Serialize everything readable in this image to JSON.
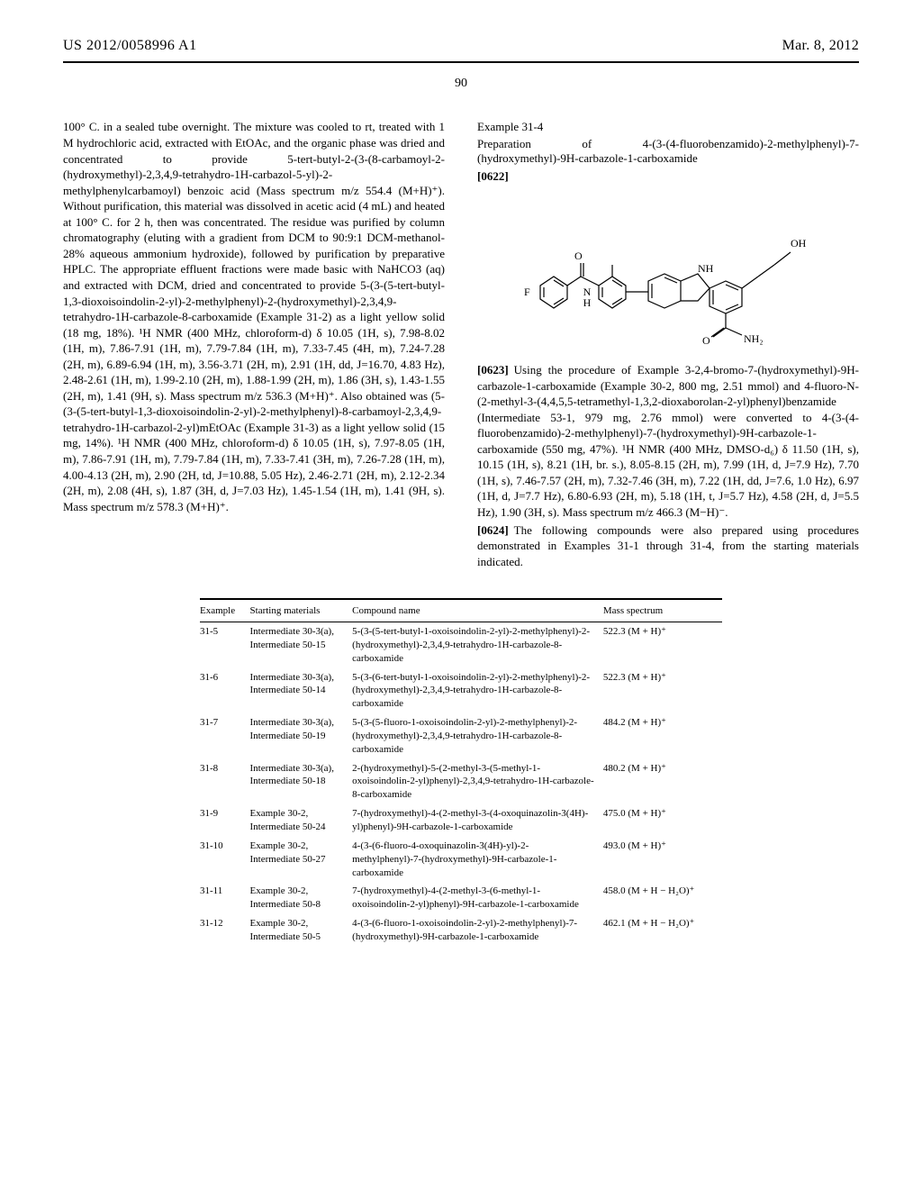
{
  "header": {
    "pubno": "US 2012/0058996 A1",
    "date": "Mar. 8, 2012"
  },
  "page_number": "90",
  "left_column": {
    "body": "100° C. in a sealed tube overnight. The mixture was cooled to rt, treated with 1 M hydrochloric acid, extracted with EtOAc, and the organic phase was dried and concentrated to provide 5-tert-butyl-2-(3-(8-carbamoyl-2-(hydroxymethyl)-2,3,4,9-tetrahydro-1H-carbazol-5-yl)-2-methylphenylcarbamoyl) benzoic acid (Mass spectrum m/z 554.4 (M+H)⁺). Without purification, this material was dissolved in acetic acid (4 mL) and heated at 100° C. for 2 h, then was concentrated. The residue was purified by column chromatography (eluting with a gradient from DCM to 90:9:1 DCM-methanol-28% aqueous ammonium hydroxide), followed by purification by preparative HPLC. The appropriate effluent fractions were made basic with NaHCO3 (aq) and extracted with DCM, dried and concentrated to provide 5-(3-(5-tert-butyl-1,3-dioxoisoindolin-2-yl)-2-methylphenyl)-2-(hydroxymethyl)-2,3,4,9-tetrahydro-1H-carbazole-8-carboxamide (Example 31-2) as a light yellow solid (18 mg, 18%). ¹H NMR (400 MHz, chloroform-d) δ 10.05 (1H, s), 7.98-8.02 (1H, m), 7.86-7.91 (1H, m), 7.79-7.84 (1H, m), 7.33-7.45 (4H, m), 7.24-7.28 (2H, m), 6.89-6.94 (1H, m), 3.56-3.71 (2H, m), 2.91 (1H, dd, J=16.70, 4.83 Hz), 2.48-2.61 (1H, m), 1.99-2.10 (2H, m), 1.88-1.99 (2H, m), 1.86 (3H, s), 1.43-1.55 (2H, m), 1.41 (9H, s). Mass spectrum m/z 536.3 (M+H)⁺. Also obtained was (5-(3-(5-tert-butyl-1,3-dioxoisoindolin-2-yl)-2-methylphenyl)-8-carbamoyl-2,3,4,9-tetrahydro-1H-carbazol-2-yl)mEtOAc (Example 31-3) as a light yellow solid (15 mg, 14%). ¹H NMR (400 MHz, chloroform-d) δ 10.05 (1H, s), 7.97-8.05 (1H, m), 7.86-7.91 (1H, m), 7.79-7.84 (1H, m), 7.33-7.41 (3H, m), 7.26-7.28 (1H, m), 4.00-4.13 (2H, m), 2.90 (2H, td, J=10.88, 5.05 Hz), 2.46-2.71 (2H, m), 2.12-2.34 (2H, m), 2.08 (4H, s), 1.87 (3H, d, J=7.03 Hz), 1.45-1.54 (1H, m), 1.41 (9H, s). Mass spectrum m/z 578.3 (M+H)⁺."
  },
  "right_column": {
    "example_label": "Example 31-4",
    "example_title": "Preparation of 4-(3-(4-fluorobenzamido)-2-methylphenyl)-7-(hydroxymethyl)-9H-carbazole-1-carboxamide",
    "para_0622": "[0622]",
    "para_0623_num": "[0623]",
    "para_0623": "Using the procedure of Example 3-2,4-bromo-7-(hydroxymethyl)-9H-carbazole-1-carboxamide (Example 30-2, 800 mg, 2.51 mmol) and 4-fluoro-N-(2-methyl-3-(4,4,5,5-tetramethyl-1,3,2-dioxaborolan-2-yl)phenyl)benzamide (Intermediate 53-1, 979 mg, 2.76 mmol) were converted to 4-(3-(4-fluorobenzamido)-2-methylphenyl)-7-(hydroxymethyl)-9H-carbazole-1-carboxamide (550 mg, 47%). ¹H NMR (400 MHz, DMSO-d₆) δ 11.50 (1H, s), 10.15 (1H, s), 8.21 (1H, br. s.), 8.05-8.15 (2H, m), 7.99 (1H, d, J=7.9 Hz), 7.70 (1H, s), 7.46-7.57 (2H, m), 7.32-7.46 (3H, m), 7.22 (1H, dd, J=7.6, 1.0 Hz), 6.97 (1H, d, J=7.7 Hz), 6.80-6.93 (2H, m), 5.18 (1H, t, J=5.7 Hz), 4.58 (2H, d, J=5.5 Hz), 1.90 (3H, s). Mass spectrum m/z 466.3 (M−H)⁻.",
    "para_0624_num": "[0624]",
    "para_0624": "The following compounds were also prepared using procedures demonstrated in Examples 31-1 through 31-4, from the starting materials indicated."
  },
  "structure": {
    "labels": {
      "OH": "OH",
      "O1": "O",
      "O2": "O",
      "NH_top": "NH",
      "NH2": "NH₂",
      "N": "N",
      "H": "H",
      "F": "F"
    }
  },
  "table": {
    "headers": {
      "example": "Example",
      "starting": "Starting materials",
      "name": "Compound name",
      "mass": "Mass spectrum"
    },
    "rows": [
      {
        "ex": "31-5",
        "start": "Intermediate 30-3(a), Intermediate 50-15",
        "name": "5-(3-(5-tert-butyl-1-oxoisoindolin-2-yl)-2-methylphenyl)-2-(hydroxymethyl)-2,3,4,9-tetrahydro-1H-carbazole-8-carboxamide",
        "mass": "522.3 (M + H)⁺"
      },
      {
        "ex": "31-6",
        "start": "Intermediate 30-3(a), Intermediate 50-14",
        "name": "5-(3-(6-tert-butyl-1-oxoisoindolin-2-yl)-2-methylphenyl)-2-(hydroxymethyl)-2,3,4,9-tetrahydro-1H-carbazole-8-carboxamide",
        "mass": "522.3 (M + H)⁺"
      },
      {
        "ex": "31-7",
        "start": "Intermediate 30-3(a), Intermediate 50-19",
        "name": "5-(3-(5-fluoro-1-oxoisoindolin-2-yl)-2-methylphenyl)-2-(hydroxymethyl)-2,3,4,9-tetrahydro-1H-carbazole-8-carboxamide",
        "mass": "484.2 (M + H)⁺"
      },
      {
        "ex": "31-8",
        "start": "Intermediate 30-3(a), Intermediate 50-18",
        "name": "2-(hydroxymethyl)-5-(2-methyl-3-(5-methyl-1-oxoisoindolin-2-yl)phenyl)-2,3,4,9-tetrahydro-1H-carbazole-8-carboxamide",
        "mass": "480.2 (M + H)⁺"
      },
      {
        "ex": "31-9",
        "start": "Example 30-2, Intermediate 50-24",
        "name": "7-(hydroxymethyl)-4-(2-methyl-3-(4-oxoquinazolin-3(4H)-yl)phenyl)-9H-carbazole-1-carboxamide",
        "mass": "475.0 (M + H)⁺"
      },
      {
        "ex": "31-10",
        "start": "Example 30-2, Intermediate 50-27",
        "name": "4-(3-(6-fluoro-4-oxoquinazolin-3(4H)-yl)-2-methylphenyl)-7-(hydroxymethyl)-9H-carbazole-1-carboxamide",
        "mass": "493.0 (M + H)⁺"
      },
      {
        "ex": "31-11",
        "start": "Example 30-2, Intermediate 50-8",
        "name": "7-(hydroxymethyl)-4-(2-methyl-3-(6-methyl-1-oxoisoindolin-2-yl)phenyl)-9H-carbazole-1-carboxamide",
        "mass": "458.0 (M + H − H₂O)⁺"
      },
      {
        "ex": "31-12",
        "start": "Example 30-2, Intermediate 50-5",
        "name": "4-(3-(6-fluoro-1-oxoisoindolin-2-yl)-2-methylphenyl)-7-(hydroxymethyl)-9H-carbazole-1-carboxamide",
        "mass": "462.1 (M + H − H₂O)⁺"
      }
    ]
  }
}
